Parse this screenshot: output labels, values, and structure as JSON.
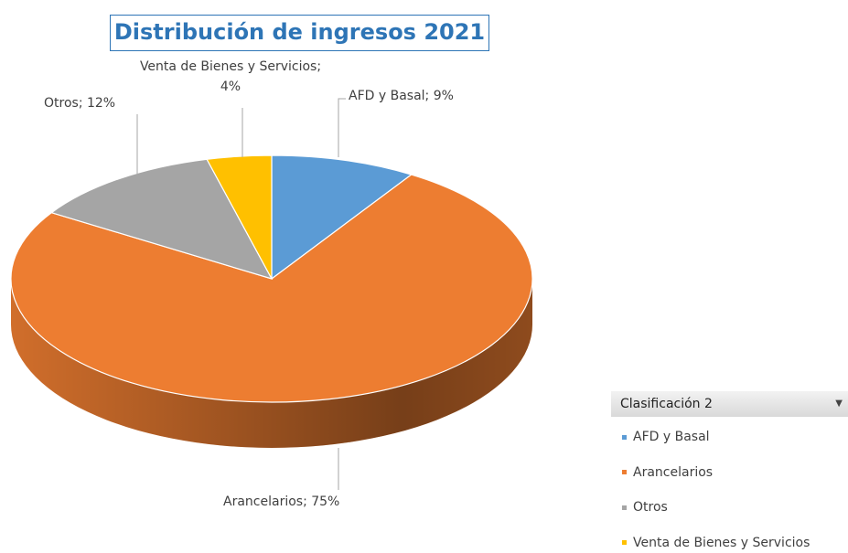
{
  "chart_data": {
    "type": "pie",
    "title": "Distribución de ingresos 2021",
    "categories": [
      "AFD y Basal",
      "Arancelarios",
      "Otros",
      "Venta de Bienes y Servicios"
    ],
    "values": [
      9,
      75,
      12,
      4
    ],
    "value_labels": [
      "AFD y Basal; 9%",
      "Arancelarios; 75%",
      "Otros; 12%",
      "Venta de Bienes y Servicios; 4%"
    ],
    "colors": [
      "#5b9bd5",
      "#ed7d31",
      "#a5a5a5",
      "#ffc000"
    ],
    "legend_title": "Clasificación 2",
    "legend": "right"
  }
}
